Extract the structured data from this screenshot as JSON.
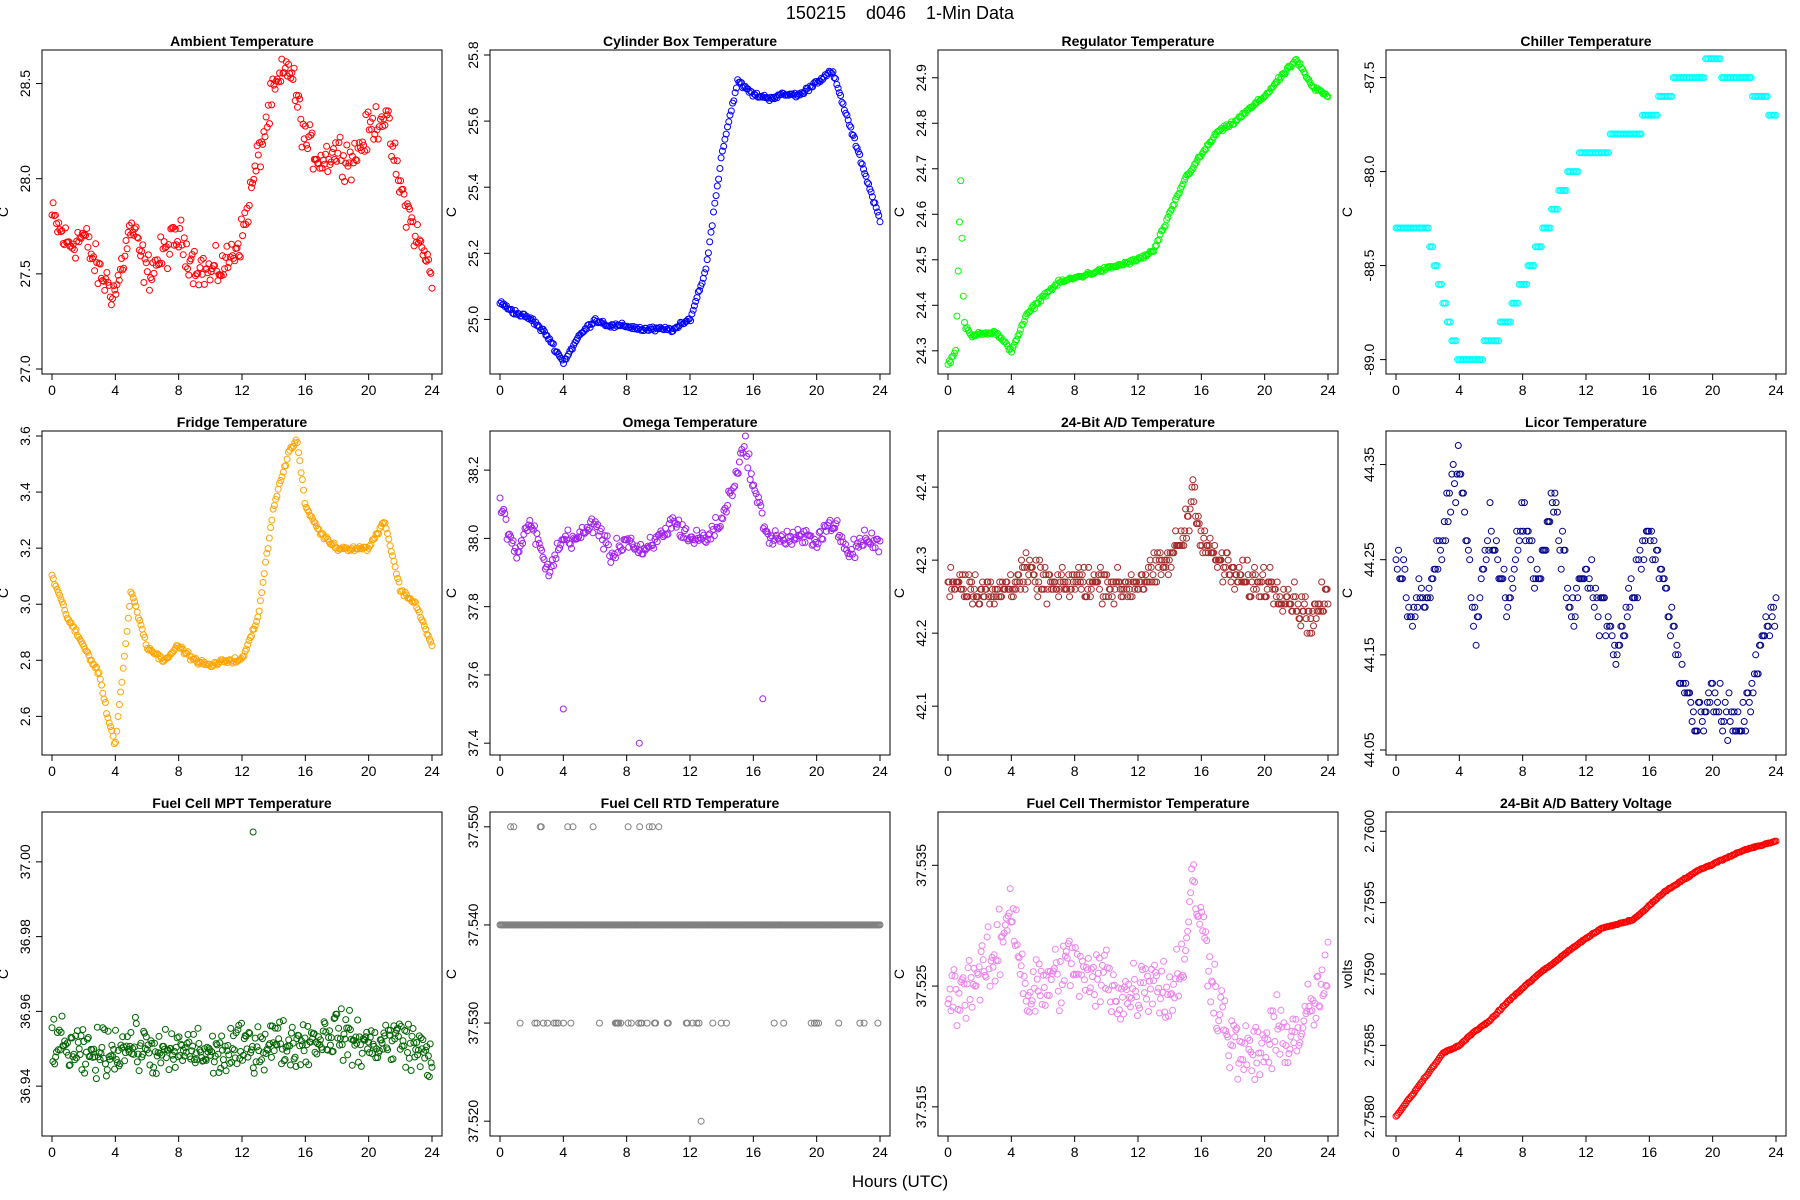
{
  "header": {
    "title": "150215    d046    1-Min Data",
    "xlabel": "Hours (UTC)"
  },
  "chart_data": [
    {
      "type": "scatter",
      "title": "Ambient Temperature",
      "ylabel": "C",
      "color": "#ff0000",
      "xlim": [
        0,
        24
      ],
      "ylim": [
        27.0,
        28.65
      ],
      "xticks": [
        0,
        4,
        8,
        12,
        16,
        20,
        24
      ],
      "yticks": [
        27.0,
        27.5,
        28.0,
        28.5
      ],
      "ytick_decimals": 1,
      "x": [
        0,
        1,
        2,
        3,
        4,
        5,
        6,
        7,
        8,
        9,
        10,
        11,
        12,
        13,
        14,
        15,
        16,
        17,
        18,
        19,
        20,
        21,
        22,
        23,
        24
      ],
      "y": [
        27.8,
        27.65,
        27.7,
        27.5,
        27.4,
        27.75,
        27.5,
        27.6,
        27.7,
        27.55,
        27.5,
        27.55,
        27.7,
        28.1,
        28.45,
        28.6,
        28.2,
        28.1,
        28.15,
        28.1,
        28.25,
        28.35,
        27.95,
        27.7,
        27.5
      ]
    },
    {
      "type": "scatter",
      "title": "Cylinder Box Temperature",
      "ylabel": "C",
      "color": "#0000ff",
      "xlim": [
        0,
        24
      ],
      "ylim": [
        24.85,
        25.8
      ],
      "xticks": [
        0,
        4,
        8,
        12,
        16,
        20,
        24
      ],
      "yticks": [
        25.0,
        25.2,
        25.4,
        25.6,
        25.8
      ],
      "ytick_decimals": 1,
      "x": [
        0,
        1,
        2,
        3,
        4,
        5,
        6,
        7,
        8,
        9,
        10,
        11,
        12,
        13,
        14,
        15,
        16,
        17,
        18,
        19,
        20,
        21,
        22,
        23,
        24
      ],
      "y": [
        25.05,
        25.02,
        25.0,
        24.95,
        24.87,
        24.95,
        25.0,
        24.98,
        24.98,
        24.97,
        24.97,
        24.97,
        25.0,
        25.15,
        25.5,
        25.72,
        25.68,
        25.67,
        25.68,
        25.68,
        25.72,
        25.75,
        25.6,
        25.45,
        25.3
      ]
    },
    {
      "type": "scatter",
      "title": "Regulator Temperature",
      "ylabel": "C",
      "color": "#00ff00",
      "xlim": [
        0,
        24
      ],
      "ylim": [
        24.26,
        24.95
      ],
      "xticks": [
        0,
        4,
        8,
        12,
        16,
        20,
        24
      ],
      "yticks": [
        24.3,
        24.4,
        24.5,
        24.6,
        24.7,
        24.8,
        24.9
      ],
      "ytick_decimals": 1,
      "x": [
        0,
        0.5,
        0.8,
        1.0,
        1.5,
        2,
        3,
        4,
        5,
        6,
        7,
        8,
        9,
        10,
        11,
        12,
        13,
        14,
        15,
        16,
        17,
        18,
        19,
        20,
        21,
        22,
        23,
        24
      ],
      "y": [
        24.27,
        24.3,
        24.68,
        24.36,
        24.33,
        24.34,
        24.34,
        24.3,
        24.38,
        24.42,
        24.45,
        24.46,
        24.47,
        24.48,
        24.49,
        24.5,
        24.52,
        24.6,
        24.68,
        24.73,
        24.78,
        24.8,
        24.83,
        24.86,
        24.9,
        24.94,
        24.88,
        24.86
      ]
    },
    {
      "type": "scatter",
      "title": "Chiller Temperature",
      "ylabel": "C",
      "color": "#00ffff",
      "xlim": [
        0,
        24
      ],
      "ylim": [
        -89.05,
        -87.38
      ],
      "xticks": [
        0,
        4,
        8,
        12,
        16,
        20,
        24
      ],
      "yticks": [
        -89.0,
        -88.5,
        -88.0,
        -87.5
      ],
      "ytick_decimals": 1,
      "x": [
        0,
        1,
        2,
        3,
        4,
        5,
        6,
        7,
        8,
        9,
        10,
        11,
        12,
        13,
        14,
        15,
        16,
        17,
        18,
        19,
        20,
        21,
        22,
        23,
        24
      ],
      "y": [
        -88.3,
        -88.3,
        -88.3,
        -88.7,
        -89.0,
        -89.0,
        -88.9,
        -88.8,
        -88.6,
        -88.4,
        -88.2,
        -88.0,
        -87.9,
        -87.9,
        -87.8,
        -87.8,
        -87.7,
        -87.6,
        -87.5,
        -87.5,
        -87.4,
        -87.5,
        -87.5,
        -87.6,
        -87.7
      ]
    },
    {
      "type": "scatter",
      "title": "Fridge Temperature",
      "ylabel": "C",
      "color": "#ffa500",
      "xlim": [
        0,
        24
      ],
      "ylim": [
        2.48,
        3.6
      ],
      "xticks": [
        0,
        4,
        8,
        12,
        16,
        20,
        24
      ],
      "yticks": [
        2.6,
        2.8,
        3.0,
        3.2,
        3.4,
        3.6
      ],
      "ytick_decimals": 1,
      "x": [
        0,
        1,
        2,
        3,
        3.5,
        4,
        5,
        6,
        7,
        8,
        9,
        10,
        11,
        12,
        13,
        14,
        15,
        15.5,
        16,
        17,
        18,
        19,
        20,
        21,
        22,
        23,
        24
      ],
      "y": [
        3.1,
        2.95,
        2.85,
        2.75,
        2.6,
        2.5,
        3.05,
        2.85,
        2.8,
        2.85,
        2.8,
        2.78,
        2.8,
        2.8,
        2.95,
        3.35,
        3.55,
        3.58,
        3.35,
        3.25,
        3.2,
        3.2,
        3.2,
        3.3,
        3.05,
        3.0,
        2.85
      ]
    },
    {
      "type": "scatter",
      "title": "Omega Temperature",
      "ylabel": "C",
      "color": "#a020f0",
      "xlim": [
        0,
        24
      ],
      "ylim": [
        37.38,
        38.3
      ],
      "xticks": [
        0,
        4,
        8,
        12,
        16,
        20,
        24
      ],
      "yticks": [
        37.4,
        37.6,
        37.8,
        38.0,
        38.2
      ],
      "ytick_decimals": 1,
      "x": [
        0,
        1,
        2,
        3,
        4,
        5,
        6,
        7,
        8,
        9,
        10,
        11,
        12,
        13,
        14,
        15,
        15.5,
        16,
        17,
        18,
        19,
        20,
        21,
        22,
        23,
        24
      ],
      "y": [
        38.1,
        37.95,
        38.05,
        37.9,
        38.0,
        38.0,
        38.05,
        37.95,
        38.0,
        37.95,
        38.0,
        38.05,
        38.0,
        38.0,
        38.05,
        38.2,
        38.28,
        38.15,
        38.0,
        38.0,
        38.0,
        38.0,
        38.05,
        37.95,
        38.0,
        37.98
      ],
      "outliers": [
        [
          4.0,
          37.5
        ],
        [
          8.8,
          37.4
        ],
        [
          16.6,
          37.53
        ]
      ]
    },
    {
      "type": "scatter",
      "title": "24-Bit A/D Temperature",
      "ylabel": "C",
      "color": "#a52a2a",
      "xlim": [
        0,
        24
      ],
      "ylim": [
        42.04,
        42.47
      ],
      "xticks": [
        0,
        4,
        8,
        12,
        16,
        20,
        24
      ],
      "yticks": [
        42.1,
        42.2,
        42.3,
        42.4
      ],
      "ytick_decimals": 1,
      "x": [
        0,
        1,
        2,
        3,
        4,
        5,
        6,
        7,
        8,
        9,
        10,
        11,
        12,
        13,
        14,
        15,
        15.5,
        16,
        17,
        18,
        19,
        20,
        21,
        22,
        23,
        24
      ],
      "y": [
        42.27,
        42.27,
        42.26,
        42.25,
        42.27,
        42.28,
        42.27,
        42.26,
        42.27,
        42.27,
        42.27,
        42.26,
        42.27,
        42.28,
        42.3,
        42.34,
        42.4,
        42.33,
        42.3,
        42.28,
        42.27,
        42.27,
        42.26,
        42.24,
        42.22,
        42.25
      ]
    },
    {
      "type": "scatter",
      "title": "Licor Temperature",
      "ylabel": "C",
      "color": "#00008b",
      "xlim": [
        0,
        24
      ],
      "ylim": [
        44.05,
        44.38
      ],
      "xticks": [
        0,
        4,
        8,
        12,
        16,
        20,
        24
      ],
      "yticks": [
        44.05,
        44.15,
        44.25,
        44.35
      ],
      "ytick_decimals": 2,
      "x": [
        0,
        1,
        2,
        3,
        4,
        5,
        6,
        7,
        8,
        9,
        10,
        11,
        12,
        13,
        14,
        15,
        16,
        17,
        18,
        19,
        20,
        21,
        22,
        23,
        24
      ],
      "y": [
        44.25,
        44.2,
        44.22,
        44.28,
        44.36,
        44.18,
        44.28,
        44.2,
        44.3,
        44.22,
        44.32,
        44.2,
        44.24,
        44.2,
        44.15,
        44.22,
        44.28,
        44.22,
        44.13,
        44.07,
        44.1,
        44.08,
        44.08,
        44.15,
        44.2
      ]
    },
    {
      "type": "scatter",
      "title": "Fuel Cell MPT Temperature",
      "ylabel": "C",
      "color": "#006400",
      "xlim": [
        0,
        24
      ],
      "ylim": [
        36.928,
        37.012
      ],
      "xticks": [
        0,
        4,
        8,
        12,
        16,
        20,
        24
      ],
      "yticks": [
        36.94,
        36.96,
        36.98,
        37.0
      ],
      "ytick_decimals": 2,
      "x": [
        0,
        1,
        2,
        3,
        4,
        5,
        6,
        7,
        8,
        9,
        10,
        11,
        12,
        13,
        14,
        15,
        16,
        17,
        18,
        19,
        20,
        21,
        22,
        23,
        24
      ],
      "y": [
        36.952,
        36.95,
        36.948,
        36.949,
        36.95,
        36.951,
        36.95,
        36.948,
        36.949,
        36.95,
        36.948,
        36.949,
        36.95,
        36.951,
        36.952,
        36.951,
        36.952,
        36.953,
        36.955,
        36.952,
        36.951,
        36.952,
        36.953,
        36.95,
        36.948
      ],
      "outliers": [
        [
          12.7,
          37.008
        ]
      ]
    },
    {
      "type": "scatter",
      "title": "Fuel Cell RTD Temperature",
      "ylabel": "C",
      "color": "#808080",
      "xlim": [
        0,
        24
      ],
      "ylim": [
        37.519,
        37.551
      ],
      "xticks": [
        0,
        4,
        8,
        12,
        16,
        20,
        24
      ],
      "yticks": [
        37.52,
        37.53,
        37.54,
        37.55
      ],
      "ytick_decimals": 3,
      "levels": [
        37.53,
        37.54,
        37.55
      ],
      "outliers": [
        [
          12.7,
          37.52
        ]
      ]
    },
    {
      "type": "scatter",
      "title": "Fuel Cell Thermistor Temperature",
      "ylabel": "C",
      "color": "#ee82ee",
      "xlim": [
        0,
        24
      ],
      "ylim": [
        37.513,
        37.539
      ],
      "xticks": [
        0,
        4,
        8,
        12,
        16,
        20,
        24
      ],
      "yticks": [
        37.515,
        37.525,
        37.535
      ],
      "ytick_decimals": 3,
      "x": [
        0,
        1,
        2,
        3,
        4,
        5,
        6,
        7,
        8,
        9,
        10,
        11,
        12,
        13,
        14,
        15,
        15.5,
        16,
        17,
        18,
        19,
        20,
        21,
        22,
        23,
        24
      ],
      "y": [
        37.524,
        37.525,
        37.526,
        37.527,
        37.532,
        37.524,
        37.525,
        37.526,
        37.527,
        37.525,
        37.526,
        37.524,
        37.525,
        37.526,
        37.524,
        37.528,
        37.534,
        37.53,
        37.524,
        37.52,
        37.519,
        37.52,
        37.521,
        37.521,
        37.523,
        37.526
      ]
    },
    {
      "type": "scatter",
      "title": "24-Bit A/D Battery Voltage",
      "ylabel": "volts",
      "color": "#ff0000",
      "xlim": [
        0,
        24
      ],
      "ylim": [
        2.7579,
        2.7601
      ],
      "xticks": [
        0,
        4,
        8,
        12,
        16,
        20,
        24
      ],
      "yticks": [
        2.758,
        2.7585,
        2.759,
        2.7595,
        2.76
      ],
      "ytick_decimals": 4,
      "x": [
        0,
        1,
        2,
        3,
        4,
        5,
        6,
        7,
        8,
        9,
        10,
        11,
        12,
        13,
        14,
        15,
        16,
        17,
        18,
        19,
        20,
        21,
        22,
        23,
        24
      ],
      "y": [
        2.758,
        2.75815,
        2.7583,
        2.75845,
        2.7585,
        2.7586,
        2.75868,
        2.7588,
        2.7589,
        2.759,
        2.75908,
        2.75917,
        2.75925,
        2.75932,
        2.75935,
        2.75938,
        2.75948,
        2.75958,
        2.75965,
        2.75972,
        2.75977,
        2.75982,
        2.75987,
        2.7599,
        2.75993
      ]
    }
  ]
}
